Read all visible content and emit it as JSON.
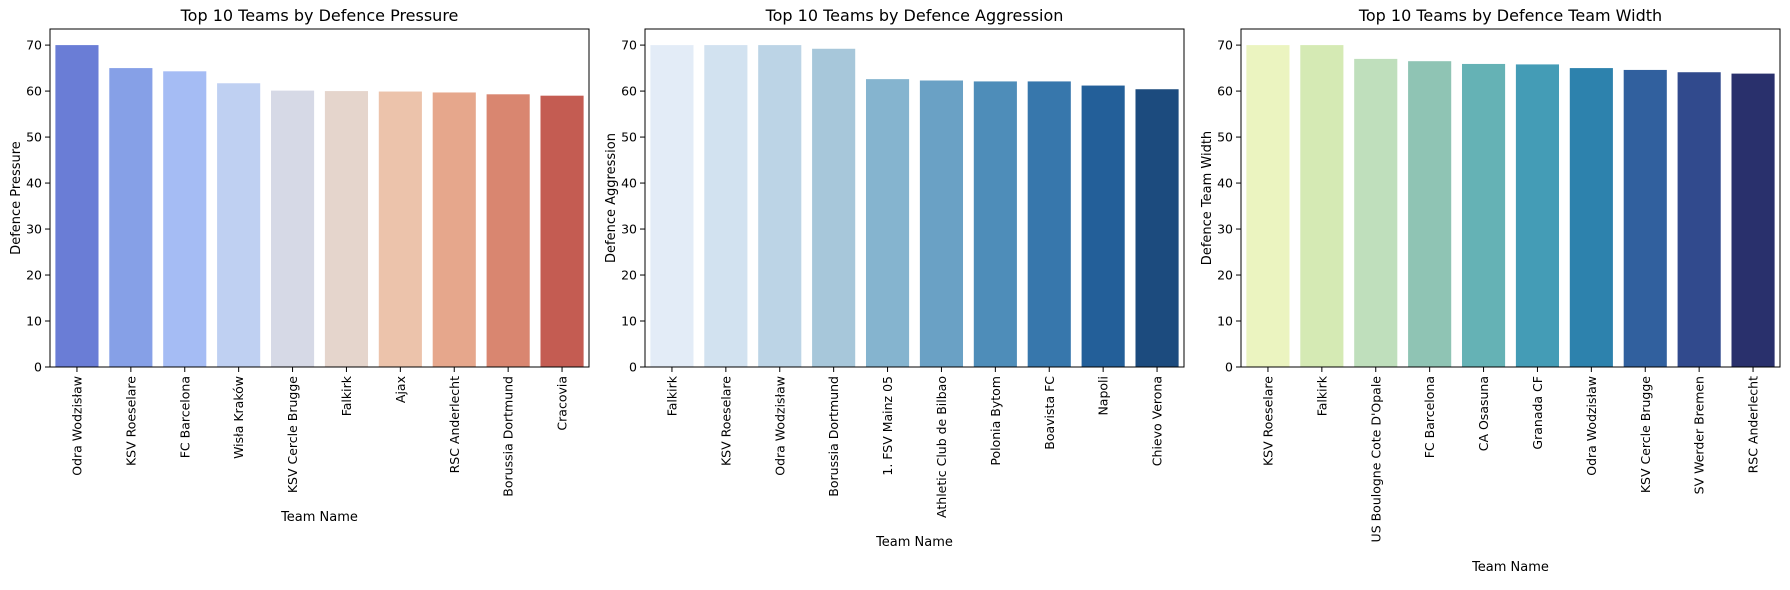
{
  "figure": {
    "charts": [
      {
        "title": "Top 10 Teams by Defence Pressure",
        "xlabel": "Team Name",
        "ylabel": "Defence Pressure"
      },
      {
        "title": "Top 10 Teams by Defence Aggression",
        "xlabel": "Team Name",
        "ylabel": "Defence Aggression"
      },
      {
        "title": "Top 10 Teams by Defence Team Width",
        "xlabel": "Team Name",
        "ylabel": "Defence Team Width"
      }
    ]
  },
  "chart_data": [
    {
      "type": "bar",
      "title": "Top 10 Teams by Defence Pressure",
      "xlabel": "Team Name",
      "ylabel": "Defence Pressure",
      "categories": [
        "Odra Wodzisław",
        "KSV Roeselare",
        "FC Barcelona",
        "Wisła Kraków",
        "KSV Cercle Brugge",
        "Falkirk",
        "Ajax",
        "RSC Anderlecht",
        "Borussia Dortmund",
        "Cracovia"
      ],
      "values": [
        70.0,
        65.0,
        64.3,
        61.7,
        60.1,
        60.0,
        59.9,
        59.7,
        59.3,
        59.0
      ],
      "ylim": [
        0,
        73.5
      ],
      "yticks": [
        0,
        10,
        20,
        30,
        40,
        50,
        60,
        70
      ],
      "grid": false,
      "palette": "coolwarm",
      "colors": [
        "#6a7dd6",
        "#86a0e7",
        "#a5bcf4",
        "#bfd0f2",
        "#d6d9e6",
        "#e5d5cc",
        "#ecc3ab",
        "#e6a78c",
        "#d98670",
        "#c45c52"
      ]
    },
    {
      "type": "bar",
      "title": "Top 10 Teams by Defence Aggression",
      "xlabel": "Team Name",
      "ylabel": "Defence Aggression",
      "categories": [
        "Falkirk",
        "KSV Roeselare",
        "Odra Wodzisław",
        "Borussia Dortmund",
        "1. FSV Mainz 05",
        "Athletic Club de Bilbao",
        "Polonia Bytom",
        "Boavista FC",
        "Napoli",
        "Chievo Verona"
      ],
      "values": [
        70.0,
        70.0,
        70.0,
        69.2,
        62.6,
        62.3,
        62.1,
        62.1,
        61.2,
        60.4
      ],
      "ylim": [
        0,
        73.5
      ],
      "yticks": [
        0,
        10,
        20,
        30,
        40,
        50,
        60,
        70
      ],
      "grid": false,
      "palette": "Blues",
      "colors": [
        "#e3ecf7",
        "#d2e2f0",
        "#bcd4e6",
        "#a7c7da",
        "#85b4cf",
        "#6aa1c5",
        "#4e8db9",
        "#3777ac",
        "#235f99",
        "#1c4b7e"
      ]
    },
    {
      "type": "bar",
      "title": "Top 10 Teams by Defence Team Width",
      "xlabel": "Team Name",
      "ylabel": "Defence Team Width",
      "categories": [
        "KSV Roeselare",
        "Falkirk",
        "US Boulogne Cote D'Opale",
        "FC Barcelona",
        "CA Osasuna",
        "Granada CF",
        "Odra Wodzisław",
        "KSV Cercle Brugge",
        "SV Werder Bremen",
        "RSC Anderlecht"
      ],
      "values": [
        70.0,
        70.0,
        67.0,
        66.5,
        65.9,
        65.8,
        65.0,
        64.6,
        64.1,
        63.8
      ],
      "ylim": [
        0,
        73.5
      ],
      "yticks": [
        0,
        10,
        20,
        30,
        40,
        50,
        60,
        70
      ],
      "grid": false,
      "palette": "YlGnBu",
      "colors": [
        "#ebf4c0",
        "#d5eab4",
        "#bfdfbc",
        "#8fc4b4",
        "#65b2b5",
        "#449cb6",
        "#2d82ad",
        "#31609e",
        "#314a8d",
        "#29306c"
      ]
    }
  ]
}
